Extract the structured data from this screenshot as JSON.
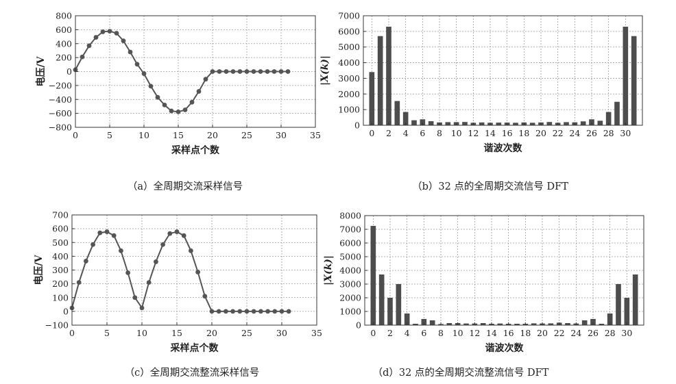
{
  "chart_data": [
    {
      "id": "a",
      "type": "line",
      "caption": "（a）全周期交流采样信号",
      "xlabel": "采样点个数",
      "ylabel": "电压/V",
      "xlim": [
        0,
        35
      ],
      "ylim": [
        -800,
        800
      ],
      "xticks": [
        0,
        5,
        10,
        15,
        20,
        25,
        30,
        35
      ],
      "yticks": [
        -800,
        -600,
        -400,
        -200,
        0,
        200,
        400,
        600,
        800
      ],
      "grid": true,
      "markers": true,
      "color": "#555555",
      "x": [
        0,
        1,
        2,
        3,
        4,
        5,
        6,
        7,
        8,
        9,
        10,
        11,
        12,
        13,
        14,
        15,
        16,
        17,
        18,
        19,
        20,
        21,
        22,
        23,
        24,
        25,
        26,
        27,
        28,
        29,
        30,
        31
      ],
      "y": [
        25,
        210,
        370,
        490,
        570,
        578,
        550,
        440,
        280,
        105,
        -30,
        -210,
        -370,
        -480,
        -565,
        -578,
        -550,
        -440,
        -285,
        -110,
        0,
        0,
        0,
        0,
        0,
        0,
        0,
        0,
        0,
        0,
        0,
        0
      ]
    },
    {
      "id": "b",
      "type": "bar",
      "caption": "（b）32 点的全周期交流信号 DFT",
      "xlabel": "谐波次数",
      "ylabel": "|X(k)|",
      "xlim": [
        -1,
        32
      ],
      "ylim": [
        0,
        7000
      ],
      "xticks": [
        0,
        2,
        4,
        6,
        8,
        10,
        12,
        14,
        16,
        18,
        20,
        22,
        24,
        26,
        28,
        30
      ],
      "yticks": [
        0,
        1000,
        2000,
        3000,
        4000,
        5000,
        6000,
        7000
      ],
      "grid": true,
      "color": "#4d4d4d",
      "categories": [
        0,
        1,
        2,
        3,
        4,
        5,
        6,
        7,
        8,
        9,
        10,
        11,
        12,
        13,
        14,
        15,
        16,
        17,
        18,
        19,
        20,
        21,
        22,
        23,
        24,
        25,
        26,
        27,
        28,
        29,
        30,
        31
      ],
      "values": [
        3400,
        5700,
        6300,
        1550,
        850,
        320,
        380,
        260,
        180,
        200,
        200,
        210,
        160,
        180,
        160,
        170,
        170,
        160,
        180,
        160,
        180,
        210,
        160,
        200,
        190,
        250,
        380,
        290,
        850,
        1500,
        6300,
        5700
      ]
    },
    {
      "id": "c",
      "type": "line",
      "caption": "（c）全周期交流整流采样信号",
      "xlabel": "采样点个数",
      "ylabel": "电压/V",
      "xlim": [
        0,
        35
      ],
      "ylim": [
        -100,
        700
      ],
      "xticks": [
        0,
        5,
        10,
        15,
        20,
        25,
        30,
        35
      ],
      "yticks": [
        -100,
        0,
        100,
        200,
        300,
        400,
        500,
        600,
        700
      ],
      "grid": true,
      "markers": true,
      "color": "#555555",
      "x": [
        0,
        1,
        2,
        3,
        4,
        5,
        6,
        7,
        8,
        9,
        10,
        11,
        12,
        13,
        14,
        15,
        16,
        17,
        18,
        19,
        20,
        21,
        22,
        23,
        24,
        25,
        26,
        27,
        28,
        29,
        30,
        31
      ],
      "y": [
        25,
        210,
        365,
        485,
        570,
        578,
        550,
        440,
        280,
        100,
        25,
        210,
        360,
        485,
        565,
        578,
        550,
        440,
        285,
        110,
        0,
        0,
        0,
        0,
        0,
        0,
        0,
        0,
        0,
        0,
        0,
        0
      ]
    },
    {
      "id": "d",
      "type": "bar",
      "caption": "（d）32 点的全周期交流整流信号 DFT",
      "xlabel": "谐波次数",
      "ylabel": "|X(k)|",
      "xlim": [
        -1,
        32
      ],
      "ylim": [
        0,
        8000
      ],
      "xticks": [
        0,
        2,
        4,
        6,
        8,
        10,
        12,
        14,
        16,
        18,
        20,
        22,
        24,
        26,
        28,
        30
      ],
      "yticks": [
        0,
        1000,
        2000,
        3000,
        4000,
        5000,
        6000,
        7000,
        8000
      ],
      "grid": true,
      "color": "#4d4d4d",
      "categories": [
        0,
        1,
        2,
        3,
        4,
        5,
        6,
        7,
        8,
        9,
        10,
        11,
        12,
        13,
        14,
        15,
        16,
        17,
        18,
        19,
        20,
        21,
        22,
        23,
        24,
        25,
        26,
        27,
        28,
        29,
        30,
        31
      ],
      "values": [
        7250,
        3700,
        2000,
        3000,
        850,
        100,
        450,
        350,
        80,
        150,
        150,
        120,
        120,
        150,
        100,
        120,
        100,
        100,
        100,
        130,
        120,
        130,
        180,
        150,
        120,
        350,
        450,
        100,
        850,
        3000,
        2000,
        3700
      ]
    }
  ]
}
